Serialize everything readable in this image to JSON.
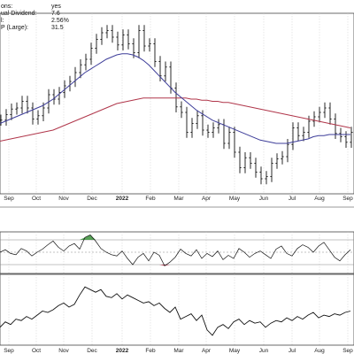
{
  "info": [
    {
      "label": "ons:",
      "value": "yes"
    },
    {
      "label": "ual Dividend:",
      "value": "7.6"
    },
    {
      "label": "l:",
      "value": "2.56%"
    },
    {
      "label": "P (Large):",
      "value": "31.5"
    }
  ],
  "colors": {
    "price": "#111111",
    "ma_short": "#3d3d99",
    "ma_long": "#b0364a",
    "grid": "#cfcfcf",
    "osc_positive": "#2e8b2e",
    "osc_negative": "#a2142e",
    "osc_bands": "#888888"
  },
  "chart_data": [
    {
      "type": "ohlc",
      "x_ticks": [
        "Sep",
        "Oct",
        "Nov",
        "Dec",
        "2022",
        "Feb",
        "Mar",
        "Apr",
        "May",
        "Jun",
        "Jul",
        "Aug",
        "Sep"
      ],
      "x": [
        0,
        6,
        12,
        18,
        24,
        30,
        36,
        42,
        48,
        54,
        60,
        66,
        72,
        78,
        84,
        90,
        96,
        102,
        108,
        114,
        120,
        126,
        132,
        138,
        144,
        150,
        156,
        162,
        168,
        174,
        180,
        186,
        192,
        198,
        204,
        210,
        216,
        222,
        228,
        234,
        240,
        246,
        252,
        258,
        264,
        270,
        276,
        282,
        288,
        294,
        300,
        306,
        312,
        318,
        324,
        330,
        336,
        342,
        348,
        354,
        360,
        366,
        372,
        378,
        384,
        390,
        396
      ],
      "price": [
        115,
        120,
        125,
        126,
        132,
        126,
        116,
        119,
        126,
        138,
        134,
        140,
        146,
        150,
        158,
        165,
        170,
        180,
        188,
        194,
        196,
        190,
        183,
        192,
        184,
        176,
        196,
        182,
        184,
        168,
        155,
        163,
        144,
        127,
        122,
        104,
        112,
        119,
        106,
        104,
        108,
        111,
        94,
        104,
        86,
        72,
        81,
        76,
        68,
        62,
        64,
        76,
        80,
        82,
        93,
        108,
        101,
        104,
        114,
        118,
        122,
        126,
        116,
        103,
        100,
        95,
        104
      ],
      "ma_short": [
        112,
        114,
        116,
        118,
        120,
        122,
        124,
        126,
        128,
        131,
        134,
        138,
        142,
        146,
        150,
        154,
        158,
        161,
        164,
        167,
        170,
        172,
        174,
        175,
        175,
        174,
        172,
        169,
        165,
        160,
        155,
        150,
        145,
        140,
        136,
        132,
        128,
        124,
        121,
        118,
        115,
        113,
        111,
        109,
        107,
        105,
        103,
        101,
        99,
        97,
        96,
        95,
        94,
        94,
        94,
        95,
        96,
        97,
        98,
        100,
        101,
        101,
        102,
        102,
        102,
        102,
        102
      ],
      "ma_long": [
        96,
        97,
        98,
        99,
        100,
        101,
        102,
        103,
        104,
        105,
        106,
        108,
        110,
        112,
        114,
        116,
        118,
        120,
        122,
        124,
        126,
        128,
        130,
        131,
        132,
        133,
        134,
        135,
        135,
        135,
        135,
        135,
        135,
        135,
        135,
        135,
        134,
        134,
        133,
        133,
        132,
        132,
        131,
        131,
        130,
        129,
        128,
        127,
        126,
        125,
        124,
        123,
        122,
        121,
        120,
        119,
        118,
        117,
        116,
        115,
        114,
        113,
        112,
        111,
        110,
        109,
        108
      ],
      "ylim": [
        50,
        210
      ]
    },
    {
      "type": "line",
      "x": [
        0,
        6,
        12,
        18,
        24,
        30,
        36,
        42,
        48,
        54,
        60,
        66,
        72,
        78,
        84,
        90,
        96,
        102,
        108,
        114,
        120,
        126,
        132,
        138,
        144,
        150,
        156,
        162,
        168,
        174,
        180,
        186,
        192,
        198,
        204,
        210,
        216,
        222,
        228,
        234,
        240,
        246,
        252,
        258,
        264,
        270,
        276,
        282,
        288,
        294,
        300,
        306,
        312,
        318,
        324,
        330,
        336,
        342,
        348,
        354,
        360,
        366,
        372,
        378,
        384,
        390,
        396
      ],
      "values": [
        50,
        54,
        48,
        46,
        56,
        52,
        44,
        50,
        55,
        62,
        68,
        58,
        52,
        60,
        64,
        55,
        74,
        78,
        68,
        56,
        50,
        46,
        44,
        52,
        40,
        30,
        42,
        48,
        36,
        50,
        45,
        28,
        34,
        42,
        55,
        48,
        44,
        54,
        40,
        48,
        43,
        52,
        38,
        45,
        40,
        56,
        50,
        42,
        48,
        52,
        46,
        40,
        55,
        60,
        48,
        44,
        56,
        62,
        58,
        50,
        60,
        66,
        54,
        42,
        36,
        46,
        54
      ],
      "bands": [
        70,
        50,
        30
      ],
      "ylim": [
        20,
        80
      ]
    },
    {
      "type": "line",
      "x": [
        0,
        6,
        12,
        18,
        24,
        30,
        36,
        42,
        48,
        54,
        60,
        66,
        72,
        78,
        84,
        90,
        96,
        102,
        108,
        114,
        120,
        126,
        132,
        138,
        144,
        150,
        156,
        162,
        168,
        174,
        180,
        186,
        192,
        198,
        204,
        210,
        216,
        222,
        228,
        234,
        240,
        246,
        252,
        258,
        264,
        270,
        276,
        282,
        288,
        294,
        300,
        306,
        312,
        318,
        324,
        330,
        336,
        342,
        348,
        354,
        360,
        366,
        372,
        378,
        384,
        390,
        396
      ],
      "values": [
        22,
        26,
        24,
        28,
        27,
        30,
        28,
        31,
        34,
        33,
        35,
        38,
        40,
        37,
        39,
        46,
        52,
        50,
        48,
        50,
        45,
        44,
        47,
        43,
        46,
        44,
        42,
        40,
        41,
        38,
        40,
        36,
        33,
        37,
        28,
        30,
        32,
        27,
        31,
        20,
        16,
        22,
        24,
        21,
        26,
        28,
        24,
        27,
        25,
        26,
        22,
        25,
        27,
        26,
        29,
        27,
        30,
        28,
        31,
        33,
        29,
        31,
        30,
        32,
        31,
        33,
        34
      ],
      "ylim": [
        10,
        60
      ]
    }
  ]
}
